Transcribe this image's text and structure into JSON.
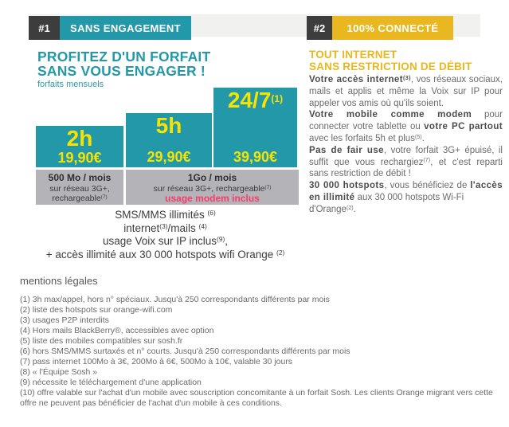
{
  "colors": {
    "teal": "#2298a8",
    "yellow_plan_text": "#f6e400",
    "yellow_header": "#e9b820",
    "yellow_title_text": "#eab71e",
    "dark_badge": "#3d3d3d",
    "gray_box": "#b4b3b7",
    "light_header_bar": "#f1f1ef",
    "pink": "#f93a6c"
  },
  "headers": {
    "left": {
      "number": "#1",
      "label": "SANS ENGAGEMENT"
    },
    "right": {
      "number": "#2",
      "label": "100% CONNECTÉ"
    }
  },
  "left_col": {
    "title_line1": "PROFITEZ D'UN FORFAIT",
    "title_line2": "SANS VOUS ENGAGER !",
    "subtitle": "forfaits mensuels",
    "plans": [
      {
        "duration": "2h",
        "duration_sup": "",
        "price": "19,90€"
      },
      {
        "duration": "5h",
        "duration_sup": "",
        "price": "29,90€"
      },
      {
        "duration": "24/7",
        "duration_sup": "(1)",
        "price": "39,90€"
      }
    ],
    "data_boxes": [
      {
        "lines": [
          {
            "segments": [
              {
                "t": "500 Mo / mois",
                "b": true
              }
            ]
          },
          {
            "segments": [
              {
                "t": "sur réseau 3G+,"
              }
            ]
          },
          {
            "segments": [
              {
                "t": "rechargeable"
              },
              {
                "t": "(7)",
                "sup": true
              }
            ]
          }
        ]
      },
      {
        "lines": [
          {
            "segments": [
              {
                "t": "1Go / mois",
                "b": true
              }
            ]
          },
          {
            "segments": [
              {
                "t": "sur réseau 3G+, rechargeable"
              },
              {
                "t": "(7)",
                "sup": true
              }
            ]
          },
          {
            "segments": [
              {
                "t": "usage modem inclus",
                "pink": true
              }
            ]
          }
        ]
      }
    ],
    "features": [
      {
        "segments": [
          {
            "t": "SMS/MMS illimités "
          },
          {
            "t": "(6)",
            "sup": true
          }
        ]
      },
      {
        "segments": [
          {
            "t": "internet"
          },
          {
            "t": "(3)",
            "sup": true
          },
          {
            "t": "/mails "
          },
          {
            "t": "(4)",
            "sup": true
          }
        ]
      },
      {
        "segments": [
          {
            "t": "usage Voix sur IP inclus"
          },
          {
            "t": "(9)",
            "sup": true
          },
          {
            "t": ","
          }
        ]
      },
      {
        "segments": [
          {
            "t": "+ accès illimité aux 30 000 hotspots wifi Orange "
          },
          {
            "t": "(2)",
            "sup": true
          }
        ]
      }
    ]
  },
  "right_col": {
    "title_line1": "TOUT INTERNET",
    "title_line2": "SANS RESTRICTION DE DÉBIT",
    "paragraphs": [
      {
        "segments": [
          {
            "t": "Votre accès internet",
            "b": true
          },
          {
            "t": "(3)",
            "b": true,
            "sup": true
          },
          {
            "t": ", vos réseaux sociaux, mails et applis et même la Voix sur IP pour appeler vos amis où qu'ils soient."
          }
        ]
      },
      {
        "segments": [
          {
            "t": "Votre mobile comme modem",
            "b": true
          },
          {
            "t": " pour connecter votre tablette ou "
          },
          {
            "t": "votre PC partout",
            "b": true
          },
          {
            "t": " avec les forfaits 5h et plus"
          },
          {
            "t": "(5)",
            "sup": true
          },
          {
            "t": "."
          }
        ]
      },
      {
        "segments": [
          {
            "t": "Pas de fair use",
            "b": true
          },
          {
            "t": ", votre forfait 3G+ épuisé, il suffit que vous rechargiez"
          },
          {
            "t": "(7)",
            "sup": true
          },
          {
            "t": ", et c'est reparti sans restriction de débit !"
          }
        ]
      },
      {
        "segments": [
          {
            "t": "30 000 hotspots",
            "b": true
          },
          {
            "t": ", vous bénéficiez de "
          },
          {
            "t": "l'accès en illimité",
            "b": true
          },
          {
            "t": " aux 30 000 hotspots Wi-Fi",
            "brAfter": true
          },
          {
            "t": "d'Orange"
          },
          {
            "t": "(2)",
            "sup": true
          },
          {
            "t": "."
          }
        ]
      }
    ]
  },
  "legal": {
    "title": "mentions légales",
    "lines": [
      "(1) 3h max/appel, hors n° spéciaux. Jusqu'à 250 correspondants différents par mois",
      "(2) liste des hotspots sur orange-wifi.com",
      "(3) usages P2P interdits",
      "(4) Hors mails BlackBerry®, accessibles avec option",
      "(5) liste des mobiles compatibles sur sosh.fr",
      "(6) hors SMS/MMS surtaxés et n° courts. Jusqu'à 250 correspondants différents par mois",
      "(7) pass internet 100Mo à 3€, 200Mo à 6€, 500Mo à 10€, valable 30 jours",
      "(8) « l'Équipe Sosh »",
      "(9) nécessite le téléchargement d'une application",
      "(10) offre valable sur l'achat d'un mobile avec souscription concomitante à un forfait Sosh. Les clients Orange migrant vers cette offre ne peuvent pas bénéficier de l'achat d'un mobile à ces conditions."
    ]
  }
}
